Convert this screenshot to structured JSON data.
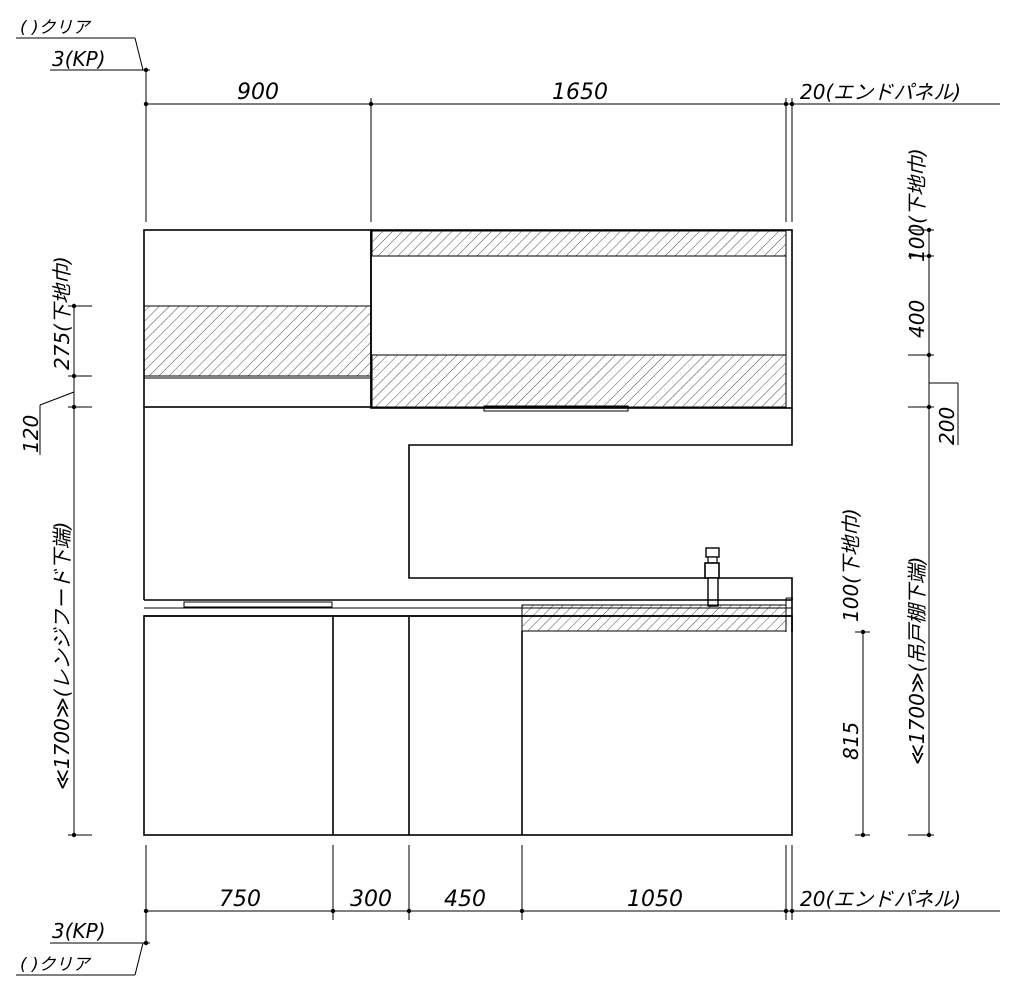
{
  "top": {
    "clear_label": "( )クリア",
    "kp_label": "3(KP)",
    "dim_left": "900",
    "dim_right": "1650",
    "end_panel": "20(エンドパネル)"
  },
  "bottom": {
    "clear_label": "( )クリア",
    "kp_label": "3(KP)",
    "dims": [
      "750",
      "300",
      "450",
      "1050"
    ],
    "end_panel": "20(エンドパネル)"
  },
  "left": {
    "shitaji": "275(下地巾)",
    "gap": "120",
    "hood": "≪1700≫(レンジフード下端)"
  },
  "right": {
    "shitaji_top": "100(下地巾)",
    "cabinet_h": "400",
    "gap": "200",
    "shitaji_counter": "100(下地巾)",
    "counter_h": "815",
    "wall_cab": "≪1700≫(吊戸棚下端)"
  }
}
